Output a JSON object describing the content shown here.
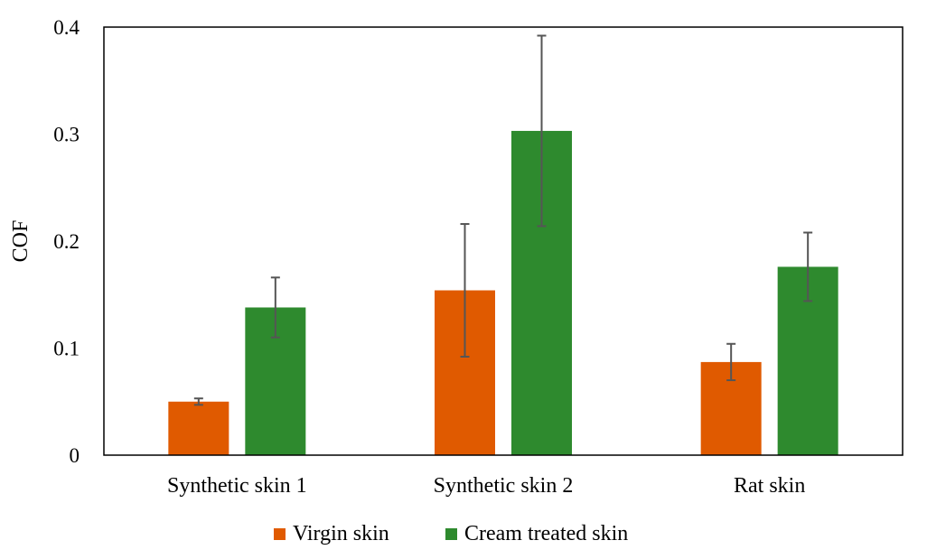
{
  "chart_data": {
    "type": "bar",
    "title": "",
    "xlabel": "",
    "ylabel": "COF",
    "ylim": [
      0,
      0.4
    ],
    "yticks": [
      0,
      0.1,
      0.2,
      0.3,
      0.4
    ],
    "ytick_labels": [
      "0",
      "0.1",
      "0.2",
      "0.3",
      "0.4"
    ],
    "categories": [
      "Synthetic skin 1",
      "Synthetic skin 2",
      "Rat skin"
    ],
    "series": [
      {
        "name": "Virgin skin",
        "color": "#e05a00",
        "values": [
          0.05,
          0.154,
          0.087
        ],
        "errors": [
          0.003,
          0.062,
          0.017
        ]
      },
      {
        "name": "Cream treated skin",
        "color": "#2e8a2e",
        "values": [
          0.138,
          0.303,
          0.176
        ],
        "errors": [
          0.028,
          0.089,
          0.032
        ]
      }
    ],
    "legend_position": "bottom"
  }
}
